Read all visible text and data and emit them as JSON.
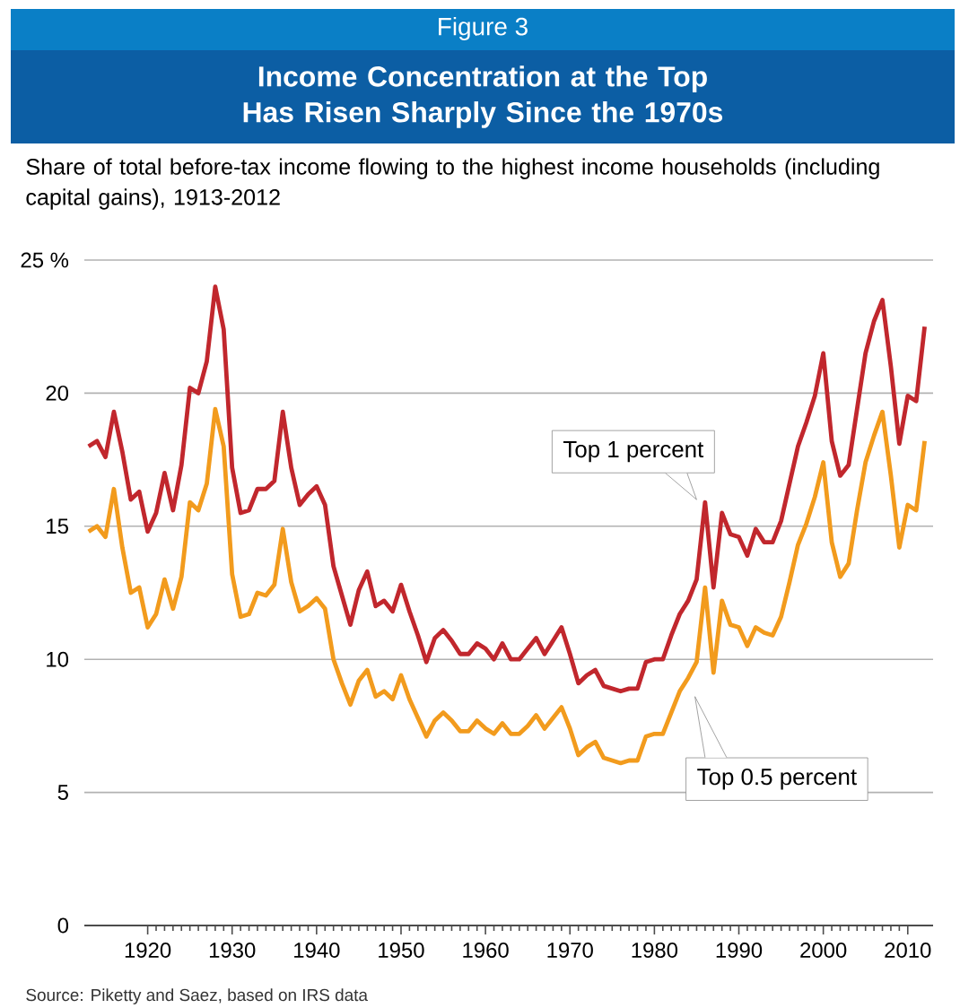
{
  "chart_data": {
    "type": "line",
    "title": "Income Concentration at the Top Has Risen Sharply Since the 1970s",
    "subtitle": "Share of total before-tax income flowing to the highest income households (including capital gains), 1913-2012",
    "annotations": [
      "Figure 3",
      "Source: Piketty and Saez, based on IRS data"
    ],
    "x": [
      1913,
      1914,
      1915,
      1916,
      1917,
      1918,
      1919,
      1920,
      1921,
      1922,
      1923,
      1924,
      1925,
      1926,
      1927,
      1928,
      1929,
      1930,
      1931,
      1932,
      1933,
      1934,
      1935,
      1936,
      1937,
      1938,
      1939,
      1940,
      1941,
      1942,
      1943,
      1944,
      1945,
      1946,
      1947,
      1948,
      1949,
      1950,
      1951,
      1952,
      1953,
      1954,
      1955,
      1956,
      1957,
      1958,
      1959,
      1960,
      1961,
      1962,
      1963,
      1964,
      1965,
      1966,
      1967,
      1968,
      1969,
      1970,
      1971,
      1972,
      1973,
      1974,
      1975,
      1976,
      1977,
      1978,
      1979,
      1980,
      1981,
      1982,
      1983,
      1984,
      1985,
      1986,
      1987,
      1988,
      1989,
      1990,
      1991,
      1992,
      1993,
      1994,
      1995,
      1996,
      1997,
      1998,
      1999,
      2000,
      2001,
      2002,
      2003,
      2004,
      2005,
      2006,
      2007,
      2008,
      2009,
      2010,
      2011,
      2012
    ],
    "series": [
      {
        "name": "Top 1 percent",
        "color": "#c1272d",
        "values": [
          18.0,
          18.2,
          17.6,
          19.3,
          17.8,
          16.0,
          16.3,
          14.8,
          15.5,
          17.0,
          15.6,
          17.3,
          20.2,
          20.0,
          21.2,
          24.0,
          22.4,
          17.2,
          15.5,
          15.6,
          16.4,
          16.4,
          16.7,
          19.3,
          17.2,
          15.8,
          16.2,
          16.5,
          15.8,
          13.5,
          12.4,
          11.3,
          12.6,
          13.3,
          12.0,
          12.2,
          11.8,
          12.8,
          11.8,
          10.9,
          9.9,
          10.8,
          11.1,
          10.7,
          10.2,
          10.2,
          10.6,
          10.4,
          10.0,
          10.6,
          10.0,
          10.0,
          10.4,
          10.8,
          10.2,
          10.7,
          11.2,
          10.2,
          9.1,
          9.4,
          9.6,
          9.0,
          8.9,
          8.8,
          8.9,
          8.9,
          9.9,
          10.0,
          10.0,
          10.9,
          11.7,
          12.2,
          13.0,
          15.9,
          12.7,
          15.5,
          14.7,
          14.6,
          13.9,
          14.9,
          14.4,
          14.4,
          15.2,
          16.6,
          18.0,
          18.9,
          19.9,
          21.5,
          18.2,
          16.9,
          17.3,
          19.4,
          21.5,
          22.7,
          23.5,
          21.0,
          18.1,
          19.9,
          19.7,
          22.5
        ]
      },
      {
        "name": "Top 0.5 percent",
        "color": "#f29b1d",
        "values": [
          14.8,
          15.0,
          14.6,
          16.4,
          14.2,
          12.5,
          12.7,
          11.2,
          11.7,
          13.0,
          11.9,
          13.1,
          15.9,
          15.6,
          16.6,
          19.4,
          18.0,
          13.2,
          11.6,
          11.7,
          12.5,
          12.4,
          12.8,
          14.9,
          12.9,
          11.8,
          12.0,
          12.3,
          11.9,
          10.0,
          9.1,
          8.3,
          9.2,
          9.6,
          8.6,
          8.8,
          8.5,
          9.4,
          8.5,
          7.8,
          7.1,
          7.7,
          8.0,
          7.7,
          7.3,
          7.3,
          7.7,
          7.4,
          7.2,
          7.6,
          7.2,
          7.2,
          7.5,
          7.9,
          7.4,
          7.8,
          8.2,
          7.4,
          6.4,
          6.7,
          6.9,
          6.3,
          6.2,
          6.1,
          6.2,
          6.2,
          7.1,
          7.2,
          7.2,
          8.0,
          8.8,
          9.3,
          9.9,
          12.7,
          9.5,
          12.2,
          11.3,
          11.2,
          10.5,
          11.2,
          11.0,
          10.9,
          11.6,
          12.9,
          14.3,
          15.1,
          16.1,
          17.4,
          14.4,
          13.1,
          13.6,
          15.6,
          17.4,
          18.4,
          19.3,
          16.9,
          14.2,
          15.8,
          15.6,
          18.2
        ]
      }
    ],
    "xlim": [
      1912.5,
      2013
    ],
    "xticks": [
      1920,
      1930,
      1940,
      1950,
      1960,
      1970,
      1980,
      1990,
      2000,
      2010
    ],
    "ylim": [
      0,
      25
    ],
    "yticks": [
      0,
      5,
      10,
      15,
      20,
      {
        "value": 25,
        "label": "25 %"
      }
    ],
    "grid": "y"
  }
}
